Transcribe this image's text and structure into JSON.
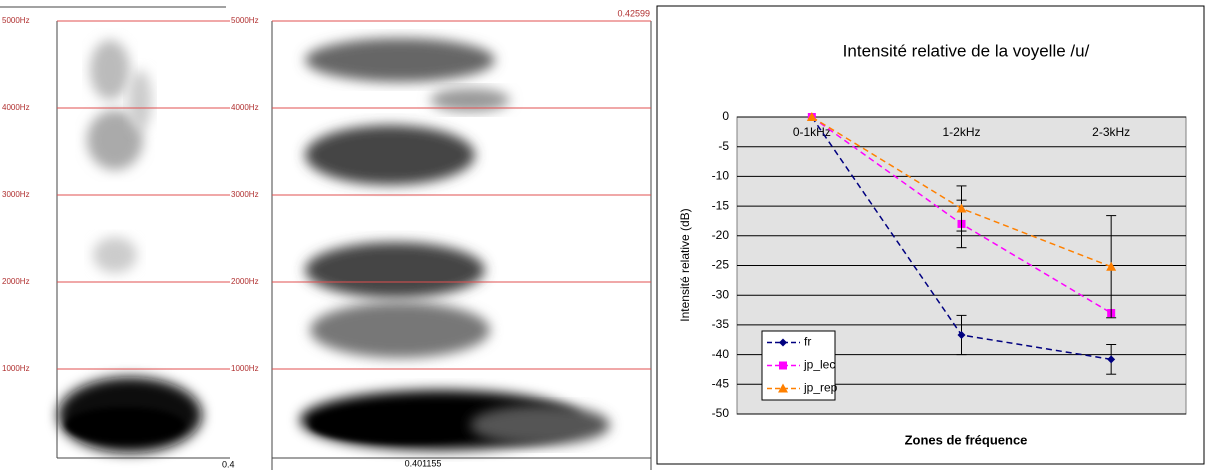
{
  "chart_data": [
    {
      "type": "spectrogram",
      "ylim": [
        0,
        5000
      ],
      "yticks": [
        {
          "value": 1000,
          "label": "1000Hz"
        },
        {
          "value": 2000,
          "label": "2000Hz"
        },
        {
          "value": 3000,
          "label": "3000Hz"
        },
        {
          "value": 4000,
          "label": "4000Hz"
        },
        {
          "value": 5000,
          "label": "5000Hz"
        }
      ],
      "cursor_labels": [
        "0.4"
      ]
    },
    {
      "type": "spectrogram",
      "ylim": [
        0,
        5000
      ],
      "yticks": [
        {
          "value": 1000,
          "label": "1000Hz"
        },
        {
          "value": 2000,
          "label": "2000Hz"
        },
        {
          "value": 3000,
          "label": "3000Hz"
        },
        {
          "value": 4000,
          "label": "4000Hz"
        },
        {
          "value": 5000,
          "label": "5000Hz"
        }
      ],
      "cursor_labels": [
        "0.401155",
        "0.42599"
      ]
    },
    {
      "type": "line",
      "title": "Intensité relative de la voyelle /u/",
      "xlabel": "Zones de fréquence",
      "ylabel": "Intensité relative (dB)",
      "categories": [
        "0-1kHz",
        "1-2kHz",
        "2-3kHz"
      ],
      "ylim": [
        -50,
        0
      ],
      "yticks": [
        0,
        -5,
        -10,
        -15,
        -20,
        -25,
        -30,
        -35,
        -40,
        -45,
        -50
      ],
      "grid": true,
      "legend": "lower left",
      "series": [
        {
          "name": "fr",
          "color": "#000080",
          "marker": "diamond",
          "values": [
            0,
            -36.7,
            -40.8
          ],
          "errors": [
            null,
            3.3,
            2.5
          ]
        },
        {
          "name": "jp_lec",
          "color": "#ff00ff",
          "marker": "square",
          "values": [
            0,
            -18,
            -33
          ],
          "errors": [
            null,
            4,
            null
          ]
        },
        {
          "name": "jp_rep",
          "color": "#ff8000",
          "marker": "triangle",
          "values": [
            0,
            -15.4,
            -25.2
          ],
          "errors": [
            null,
            3.8,
            8.6
          ]
        }
      ]
    }
  ]
}
